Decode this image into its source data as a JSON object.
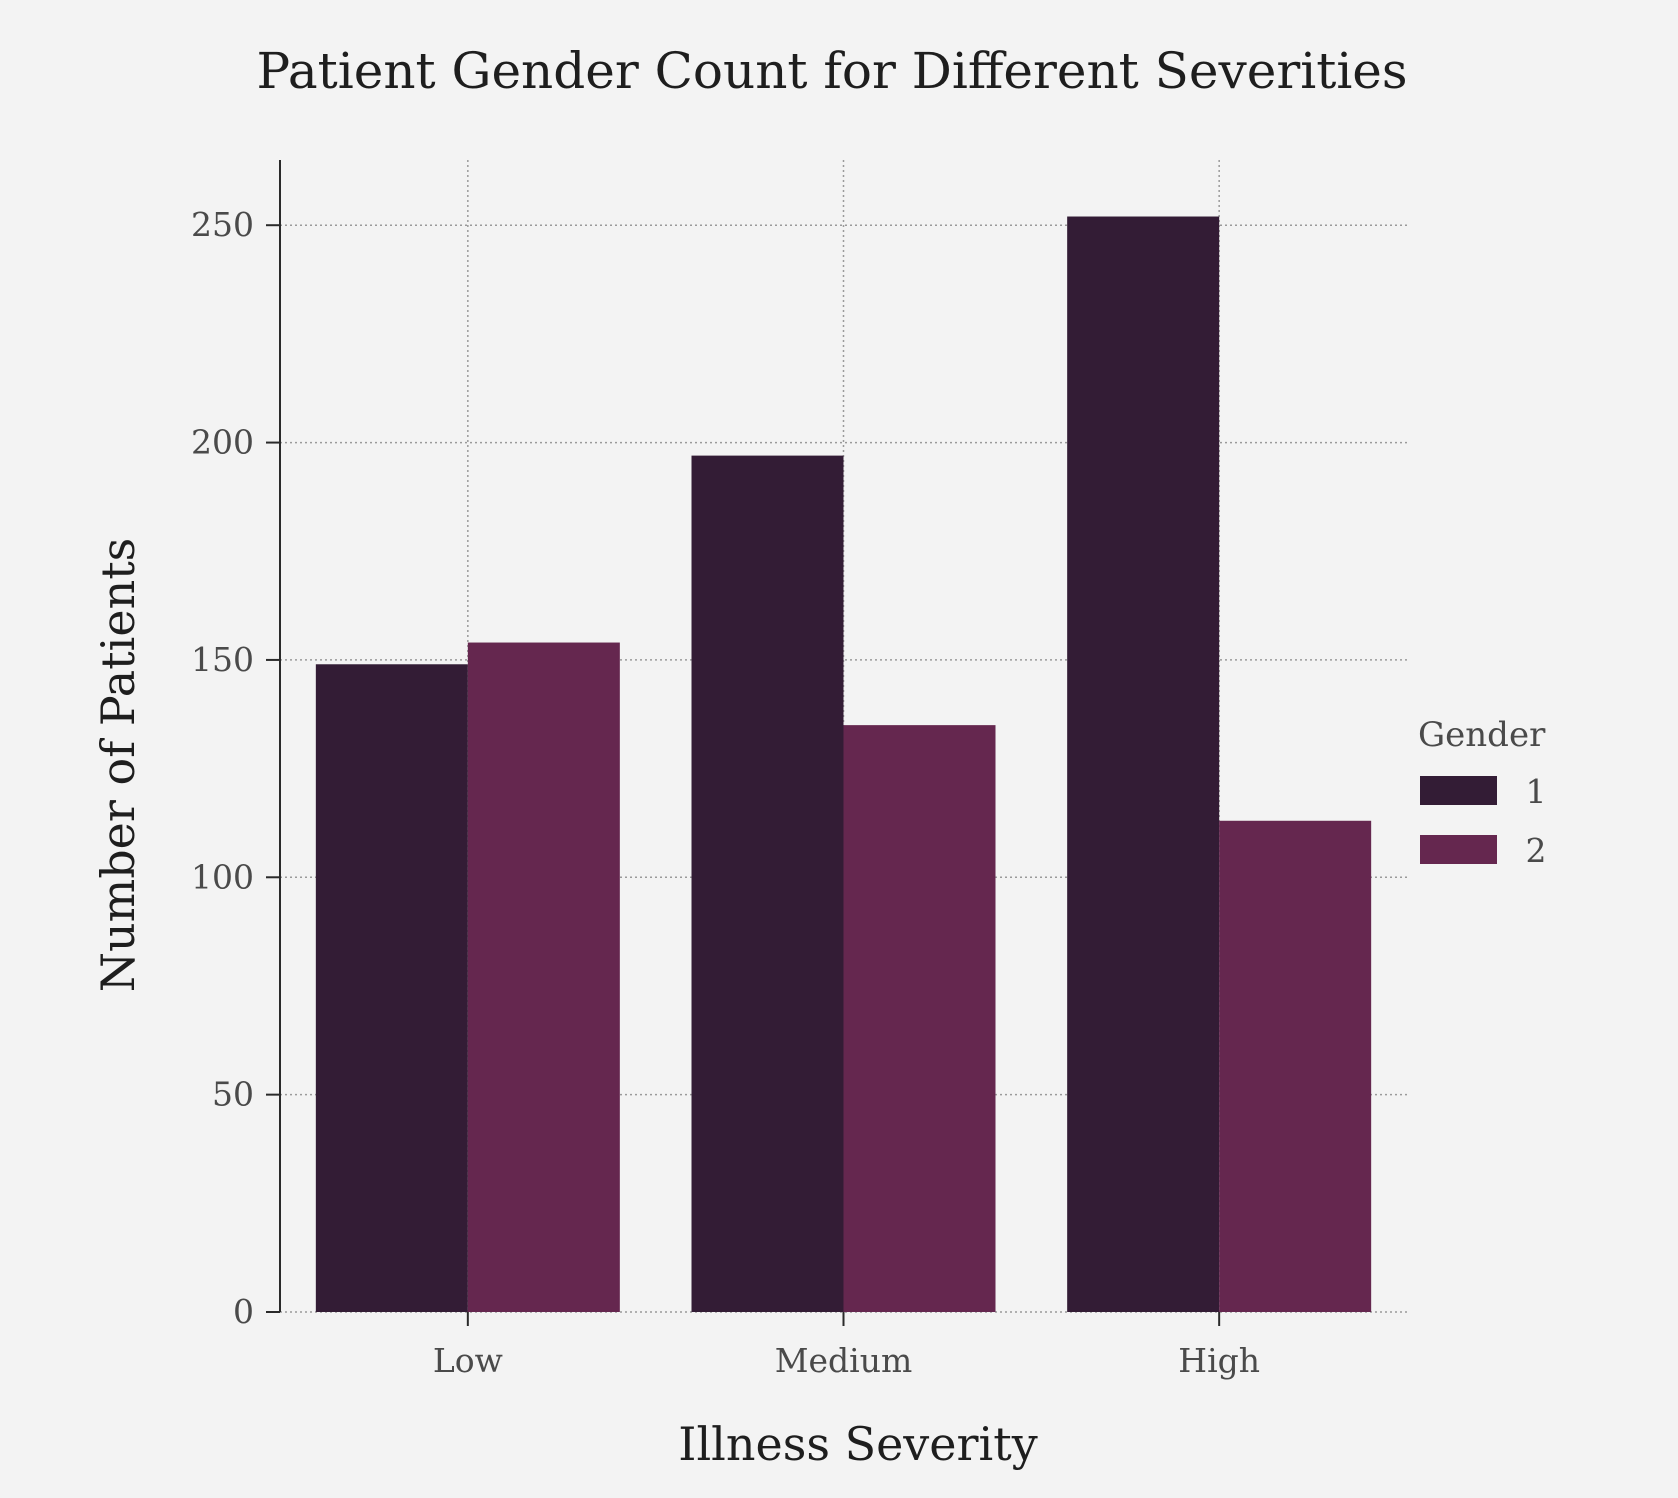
{
  "chart_data": {
    "type": "bar",
    "title": "Patient Gender Count for Different Severities",
    "xlabel": "Illness Severity",
    "ylabel": "Number of Patients",
    "categories": [
      "Low",
      "Medium",
      "High"
    ],
    "ylim": [
      0,
      265
    ],
    "yticks": [
      0,
      50,
      100,
      150,
      200,
      250
    ],
    "grid": true,
    "legend": {
      "title": "Gender",
      "placement": "right"
    },
    "series": [
      {
        "name": "1",
        "values": [
          149,
          197,
          252
        ],
        "color": "#331c35"
      },
      {
        "name": "2",
        "values": [
          154,
          135,
          113
        ],
        "color": "#65274f"
      }
    ]
  }
}
